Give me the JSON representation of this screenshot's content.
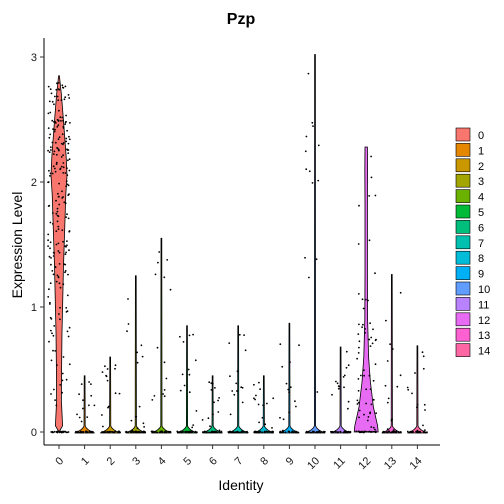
{
  "chart_data": {
    "type": "violin",
    "title": "Pzp",
    "xlabel": "Identity",
    "ylabel": "Expression Level",
    "categories": [
      "0",
      "1",
      "2",
      "3",
      "4",
      "5",
      "6",
      "7",
      "8",
      "9",
      "10",
      "11",
      "12",
      "13",
      "14"
    ],
    "colors": [
      "#F8766D",
      "#E58700",
      "#C99800",
      "#A3A500",
      "#6BB100",
      "#00BA38",
      "#00BF7D",
      "#00C0AF",
      "#00BCD8",
      "#00B0F6",
      "#619CFF",
      "#B983FF",
      "#E76BF3",
      "#FD61D1",
      "#FF67A4"
    ],
    "max_values": [
      2.85,
      0.45,
      0.6,
      1.25,
      1.55,
      0.85,
      0.45,
      0.85,
      0.45,
      0.87,
      3.02,
      0.68,
      2.28,
      1.26,
      0.69
    ],
    "violin_shapes": [
      {
        "category": "0",
        "profile": [
          [
            0,
            0.0
          ],
          [
            0.05,
            0.45
          ],
          [
            0.25,
            0.3
          ],
          [
            0.5,
            0.32
          ],
          [
            0.8,
            0.38
          ],
          [
            1.0,
            0.45
          ],
          [
            1.3,
            0.55
          ],
          [
            1.6,
            0.7
          ],
          [
            1.9,
            0.85
          ],
          [
            2.05,
            1.0
          ],
          [
            2.2,
            0.9
          ],
          [
            2.5,
            0.55
          ],
          [
            2.7,
            0.3
          ],
          [
            2.85,
            0.05
          ]
        ]
      },
      {
        "category": "12",
        "profile": [
          [
            0,
            1.0
          ],
          [
            0.05,
            0.95
          ],
          [
            0.2,
            0.6
          ],
          [
            0.4,
            0.35
          ],
          [
            0.6,
            0.2
          ],
          [
            0.9,
            0.12
          ],
          [
            1.3,
            0.1
          ],
          [
            1.8,
            0.1
          ],
          [
            2.1,
            0.12
          ],
          [
            2.28,
            0.1
          ]
        ]
      }
    ],
    "ylim": [
      -0.1,
      3.2
    ],
    "yticks": [
      0,
      1,
      2,
      3
    ],
    "legend_position": "right",
    "grid": false
  }
}
